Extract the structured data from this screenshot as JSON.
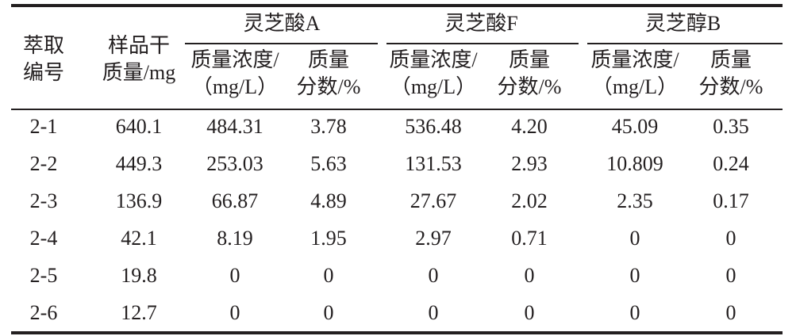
{
  "table": {
    "head": {
      "id": [
        "萃取",
        "编号"
      ],
      "mass": [
        "样品干",
        "质量/mg"
      ],
      "groups": [
        "灵芝酸A",
        "灵芝酸F",
        "灵芝醇B"
      ],
      "sub": [
        [
          "质量浓度/",
          "（mg/L）"
        ],
        [
          "质量",
          "分数/%"
        ]
      ]
    },
    "rows": [
      [
        "2-1",
        "640.1",
        "484.31",
        "3.78",
        "536.48",
        "4.20",
        "45.09",
        "0.35"
      ],
      [
        "2-2",
        "449.3",
        "253.03",
        "5.63",
        "131.53",
        "2.93",
        "10.809",
        "0.24"
      ],
      [
        "2-3",
        "136.9",
        "66.87",
        "4.89",
        "27.67",
        "2.02",
        "2.35",
        "0.17"
      ],
      [
        "2-4",
        "42.1",
        "8.19",
        "1.95",
        "2.97",
        "0.71",
        "0",
        "0"
      ],
      [
        "2-5",
        "19.8",
        "0",
        "0",
        "0",
        "0",
        "0",
        "0"
      ],
      [
        "2-6",
        "12.7",
        "0",
        "0",
        "0",
        "0",
        "0",
        "0"
      ]
    ]
  }
}
